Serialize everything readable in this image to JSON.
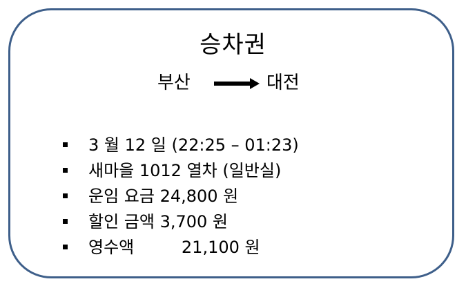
{
  "ticket": {
    "title": "승차권",
    "route": {
      "from": "부산",
      "to": "대전"
    },
    "items": [
      "3 월 12 일 (22:25 – 01:23)",
      "새마을 1012 열차 (일반실)",
      "운임 요금 24,800 원",
      "할인 금액 3,700 원",
      "영수액         21,100 원"
    ],
    "border_color": "#3e5f8a"
  }
}
